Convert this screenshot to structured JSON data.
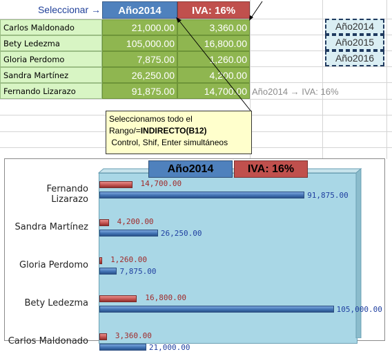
{
  "sheet": {
    "select_label": "Seleccionar →",
    "header_year": "Año2014",
    "header_iva": "IVA: 16%",
    "rows": [
      {
        "name": "Carlos Maldonado",
        "value": "21,000.00",
        "iva": "3,360.00"
      },
      {
        "name": "Bety Ledezma",
        "value": "105,000.00",
        "iva": "16,800.00"
      },
      {
        "name": "Gloria Perdomo",
        "value": "7,875.00",
        "iva": "1,260.00"
      },
      {
        "name": "Sandra Martínez",
        "value": "26,250.00",
        "iva": "4,200.00"
      },
      {
        "name": "Fernando Lizarazo",
        "value": "91,875.00",
        "iva": "14,700.00"
      }
    ],
    "year_options": [
      "Año2014",
      "Año2015",
      "Año2016"
    ],
    "iva_note": "Año2014 → IVA: 16%"
  },
  "tooltip": {
    "line1": "Seleccionamos todo el",
    "line2_prefix": "Rango/=",
    "line2_bold": "INDIRECTO(B12)",
    "line3": " Control, Shif, Enter simultáneos"
  },
  "chart_data": {
    "type": "bar",
    "orientation": "horizontal",
    "title_parts": [
      "Año2014",
      "IVA: 16%"
    ],
    "categories": [
      "Fernando Lizarazo",
      "Sandra Martínez",
      "Gloria Perdomo",
      "Bety Ledezma",
      "Carlos Maldonado"
    ],
    "series": [
      {
        "name": "Año2014",
        "color": "#4f81bd",
        "values": [
          91875,
          26250,
          7875,
          105000,
          21000
        ],
        "labels": [
          "91,875.00",
          "26,250.00",
          "7,875.00",
          "105,000.00",
          "21,000.00"
        ]
      },
      {
        "name": "IVA: 16%",
        "color": "#c0504d",
        "values": [
          14700,
          4200,
          1260,
          16800,
          3360
        ],
        "labels": [
          "14,700.00",
          "4,200.00",
          "1,260.00",
          "16,800.00",
          "3,360.00"
        ]
      }
    ],
    "xlim": [
      0,
      115000
    ],
    "grid": false
  }
}
